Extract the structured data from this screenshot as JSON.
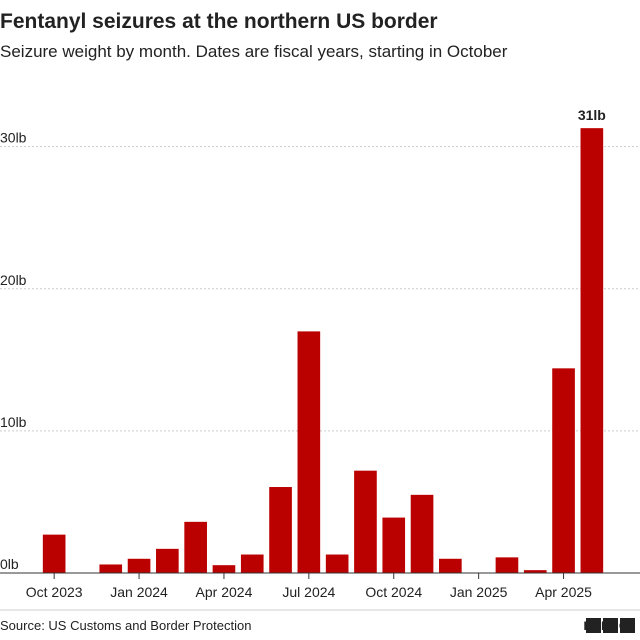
{
  "chart_data": {
    "type": "bar",
    "title": "Fentanyl seizures at the northern US border",
    "subtitle": "Seizure weight by month. Dates are fiscal years, starting in October",
    "source": "Source: US Customs and Border Protection",
    "logo": "BBC",
    "categories": [
      "Oct 2023",
      null,
      null,
      "Jan 2024",
      null,
      null,
      "Apr 2024",
      null,
      null,
      "Jul 2024",
      null,
      null,
      "Oct 2024",
      null,
      null,
      "Jan 2025",
      null,
      null,
      "Apr 2025",
      null
    ],
    "values": [
      2.7,
      0,
      0.6,
      1.0,
      1.7,
      3.6,
      0.55,
      1.3,
      6.05,
      17.0,
      1.3,
      7.2,
      3.9,
      5.5,
      1.0,
      0,
      1.1,
      0.2,
      14.4,
      31.3
    ],
    "value_labels": [
      null,
      null,
      null,
      null,
      null,
      null,
      null,
      null,
      null,
      null,
      null,
      null,
      null,
      null,
      null,
      null,
      null,
      null,
      null,
      "31lb"
    ],
    "color": "#bb0000",
    "ylim": [
      0,
      33
    ],
    "yticks": [
      {
        "value": 0,
        "label": "0lb"
      },
      {
        "value": 10,
        "label": "10lb"
      },
      {
        "value": 20,
        "label": "20lb"
      },
      {
        "value": 30,
        "label": "30lb"
      }
    ],
    "grid": true
  }
}
